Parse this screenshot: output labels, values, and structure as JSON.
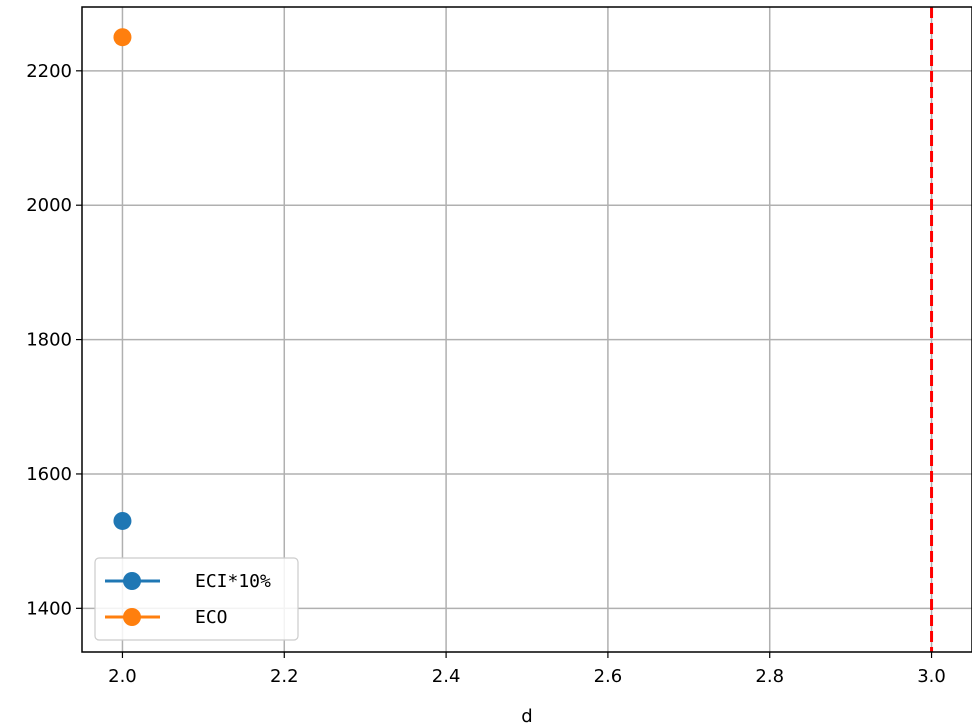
{
  "chart_data": {
    "type": "line",
    "title": "",
    "xlabel": "d",
    "ylabel": "",
    "xlim": [
      1.95,
      3.05
    ],
    "ylim": [
      1335,
      2295
    ],
    "x_ticks": [
      2.0,
      2.2,
      2.4,
      2.6,
      2.8,
      3.0
    ],
    "x_tick_labels": [
      "2.0",
      "2.2",
      "2.4",
      "2.6",
      "2.8",
      "3.0"
    ],
    "y_ticks": [
      1400,
      1600,
      1800,
      2000,
      2200
    ],
    "y_tick_labels": [
      "1400",
      "1600",
      "1800",
      "2000",
      "2200"
    ],
    "grid": true,
    "legend_position": "lower-left",
    "series": [
      {
        "name": "ECI*10%",
        "color": "#1f77b4",
        "x": [
          2.0
        ],
        "values": [
          1530
        ]
      },
      {
        "name": "ECO",
        "color": "#ff7f0e",
        "x": [
          2.0
        ],
        "values": [
          2250
        ]
      }
    ],
    "reference_lines": [
      {
        "orientation": "vertical",
        "x": 3.0,
        "color": "#ff0000",
        "style": "dashed"
      }
    ]
  }
}
